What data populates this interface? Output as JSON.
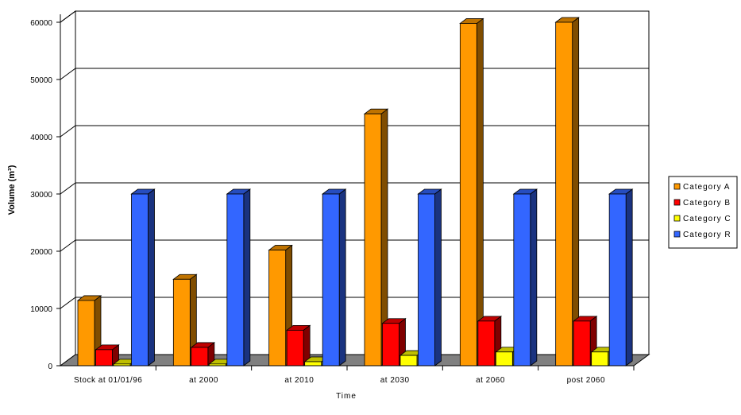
{
  "chart_data": {
    "type": "bar",
    "style": "3d-clustered-column",
    "xlabel": "Time",
    "ylabel": "Volume (m³)",
    "ylim": [
      0,
      60000
    ],
    "yticks": [
      "0",
      "10000",
      "20000",
      "30000",
      "40000",
      "50000",
      "60000"
    ],
    "categories": [
      "Stock at 01/01/96",
      "at 2000",
      "at 2010",
      "at 2030",
      "at 2060",
      "post 2060"
    ],
    "series": [
      {
        "name": "Category A",
        "color": "#ff9900",
        "values": [
          11400,
          15100,
          20200,
          44000,
          59800,
          60000
        ]
      },
      {
        "name": "Category B",
        "color": "#ff0000",
        "values": [
          2800,
          3200,
          6200,
          7400,
          7800,
          7800
        ]
      },
      {
        "name": "Category C",
        "color": "#ffff00",
        "values": [
          300,
          300,
          700,
          1800,
          2400,
          2400
        ]
      },
      {
        "name": "Category R",
        "color": "#3366ff",
        "values": [
          30000,
          30000,
          30000,
          30000,
          30000,
          30000
        ]
      }
    ],
    "grid": true,
    "legend": "right"
  }
}
